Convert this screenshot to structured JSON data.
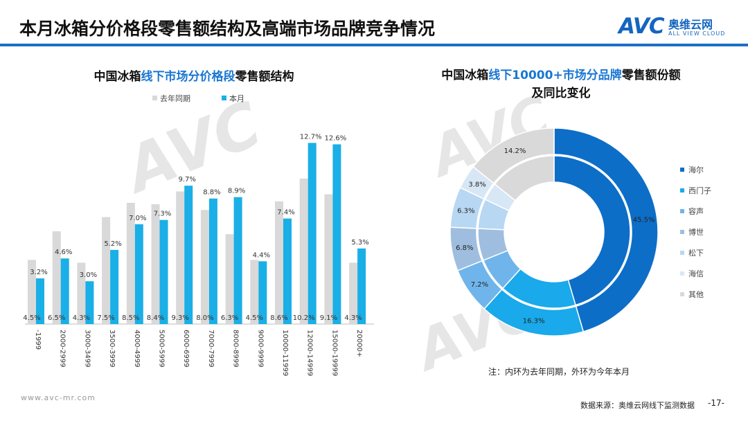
{
  "header": {
    "title": "本月冰箱分价格段零售额结构及高端市场品牌竞争情况",
    "logo_text": "AVC",
    "logo_cn": "奥维云网",
    "logo_en": "ALL VIEW CLOUD"
  },
  "left_chart": {
    "subtitle_pre": "中国冰箱",
    "subtitle_hl": "线下市场分价格段",
    "subtitle_post": "零售额结构"
  },
  "right_chart": {
    "subtitle_pre": "中国冰箱",
    "subtitle_hl": "线下10000+市场分品牌",
    "subtitle_post": "零售额份额",
    "subtitle_line2": "及同比变化"
  },
  "chart_data": [
    {
      "type": "bar",
      "title": "中国冰箱线下市场分价格段零售额结构",
      "categories": [
        "-1999",
        "2000-2999",
        "3000-3499",
        "3500-3999",
        "4000-4999",
        "5000-5999",
        "6000-6999",
        "7000-7999",
        "8000-8999",
        "9000-9999",
        "10000-11999",
        "12000-14999",
        "15000-19999",
        "20000+"
      ],
      "series": [
        {
          "name": "去年同期",
          "color": "#d9d9d9",
          "values": [
            4.5,
            6.5,
            4.3,
            7.5,
            8.5,
            8.4,
            9.3,
            8.0,
            6.3,
            4.5,
            8.6,
            10.2,
            9.1,
            4.3
          ],
          "labels": [
            "4.5%",
            "6.5%",
            "4.3%",
            "7.5%",
            "8.5%",
            "8.4%",
            "9.3%",
            "8.0%",
            "6.3%",
            "4.5%",
            "8.6%",
            "10.2%",
            "9.1%",
            "4.3%"
          ]
        },
        {
          "name": "本月",
          "color": "#1aafe6",
          "values": [
            3.2,
            4.6,
            3.0,
            5.2,
            7.0,
            7.3,
            9.7,
            8.8,
            8.9,
            4.4,
            7.4,
            12.7,
            12.6,
            5.3
          ],
          "labels": [
            "3.2%",
            "4.6%",
            "3.0%",
            "5.2%",
            "7.0%",
            "7.3%",
            "9.7%",
            "8.8%",
            "8.9%",
            "4.4%",
            "7.4%",
            "12.7%",
            "12.6%",
            "5.3%"
          ]
        }
      ],
      "ylim": [
        0,
        14
      ]
    },
    {
      "type": "pie",
      "title": "中国冰箱线下10000+市场分品牌零售额份额及同比变化",
      "categories": [
        "海尔",
        "西门子",
        "容声",
        "博世",
        "松下",
        "海信",
        "其他"
      ],
      "colors": [
        "#0d6ec7",
        "#1aa9ea",
        "#6fb5ec",
        "#9fbedf",
        "#b8d7f3",
        "#d8e7f6",
        "#d9d9d9"
      ],
      "outer_values": [
        45.5,
        16.3,
        7.2,
        6.8,
        6.3,
        3.8,
        14.2
      ],
      "outer_labels": [
        "45.5%",
        "16.3%",
        "7.2%",
        "6.8%",
        "6.3%",
        "3.8%",
        "14.2%"
      ],
      "inner_values": [
        45.5,
        16.3,
        7.2,
        6.8,
        6.3,
        3.8,
        14.2
      ]
    }
  ],
  "footer": {
    "note": "注：内环为去年同期，外环为今年本月",
    "url": "www.avc-mr.com",
    "source": "数据来源：奥维云网线下监测数据",
    "page": "-17-"
  }
}
